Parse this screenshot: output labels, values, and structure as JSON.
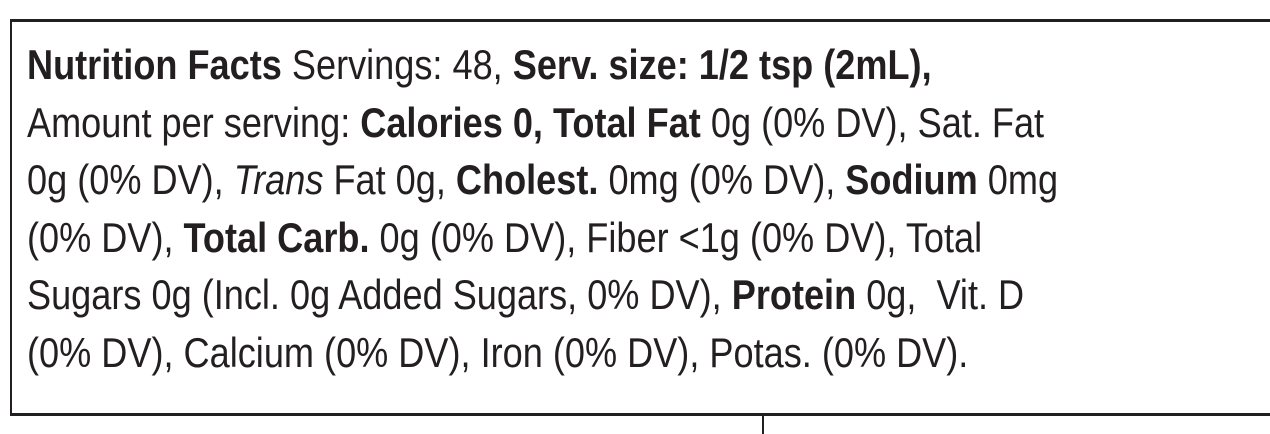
{
  "nutrition_facts": {
    "lines": [
      [
        "Nutrition Facts",
        " Servings: 48, ",
        "Serv. size: 1/2 tsp (2mL),"
      ],
      [
        "Amount per serving: ",
        "Calories 0, Total Fat",
        " 0g (0% DV), Sat. Fat"
      ],
      [
        "0g (0% DV), ",
        "Trans",
        " Fat 0g, ",
        "Cholest.",
        " 0mg (0% DV), ",
        "Sodium",
        " 0mg"
      ],
      [
        "(0% DV), ",
        "Total Carb.",
        " 0g (0% DV), Fiber <1g (0% DV), Total"
      ],
      [
        "Sugars 0g (Incl. 0g Added Sugars, 0% DV), ",
        "Protein",
        " 0g,  Vit. D"
      ],
      [
        "(0% DV), Calcium (0% DV), Iron (0% DV), Potas. (0% DV)."
      ]
    ]
  }
}
